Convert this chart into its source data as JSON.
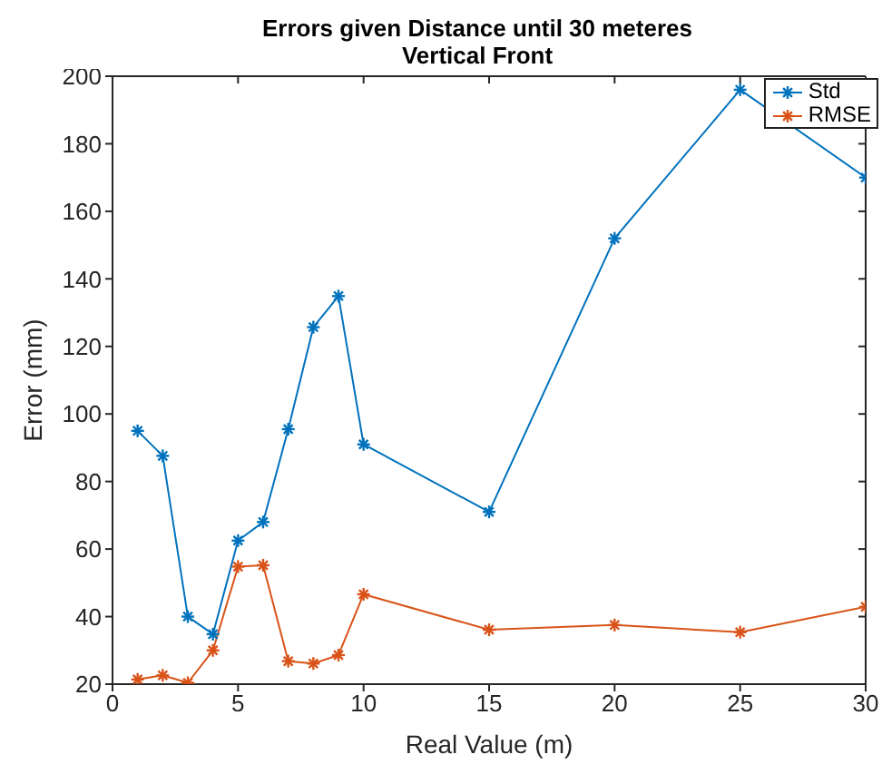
{
  "chart_data": {
    "type": "line",
    "title": "Errors given Distance until 30 meteres\nVertical Front",
    "xlabel": "Real Value (m)",
    "ylabel": "Error (mm)",
    "x": [
      1,
      2,
      3,
      4,
      5,
      6,
      7,
      8,
      9,
      10,
      15,
      20,
      25,
      30
    ],
    "series": [
      {
        "name": "Std",
        "color": "#0072bd",
        "values": [
          95,
          87.6,
          40,
          34.8,
          62.5,
          68,
          95.5,
          125.7,
          134.9,
          91,
          71,
          152,
          196,
          170
        ]
      },
      {
        "name": "RMSE",
        "color": "#d95319",
        "values": [
          21.4,
          22.6,
          20.4,
          30,
          54.8,
          55.2,
          26.8,
          26.1,
          28.6,
          46.6,
          36.1,
          37.5,
          35.4,
          42.9
        ]
      }
    ],
    "xlim": [
      0,
      30
    ],
    "xticks": [
      0,
      5,
      10,
      15,
      20,
      25,
      30
    ],
    "ylim": [
      20,
      200
    ],
    "yticks": [
      20,
      40,
      60,
      80,
      100,
      120,
      140,
      160,
      180,
      200
    ],
    "grid": false,
    "legend": "top right",
    "marker": "cross",
    "line_style": "solid"
  }
}
